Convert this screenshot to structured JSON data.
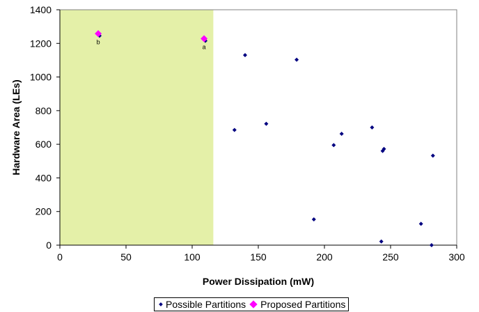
{
  "chart_data": {
    "type": "scatter",
    "xlabel": "Power Dissipation (mW)",
    "ylabel": "Hardware Area (LEs)",
    "xlim": [
      0,
      300
    ],
    "ylim": [
      0,
      1400
    ],
    "xticks": [
      0,
      50,
      100,
      150,
      200,
      250,
      300
    ],
    "yticks": [
      0,
      200,
      400,
      600,
      800,
      1000,
      1200,
      1400
    ],
    "grid": false,
    "legend_position": "bottom",
    "shaded_region": {
      "x": [
        0,
        116
      ],
      "color": "#e4f0a8"
    },
    "series": [
      {
        "name": "Possible Partitions",
        "color": "#000080",
        "marker": "diamond",
        "points": [
          {
            "x": 30,
            "y": 1245
          },
          {
            "x": 110,
            "y": 1215
          },
          {
            "x": 140,
            "y": 1130
          },
          {
            "x": 179,
            "y": 1103
          },
          {
            "x": 132,
            "y": 685
          },
          {
            "x": 156,
            "y": 722
          },
          {
            "x": 236,
            "y": 700
          },
          {
            "x": 213,
            "y": 662
          },
          {
            "x": 207,
            "y": 595
          },
          {
            "x": 245,
            "y": 572
          },
          {
            "x": 244,
            "y": 560
          },
          {
            "x": 282,
            "y": 532
          },
          {
            "x": 192,
            "y": 153
          },
          {
            "x": 273,
            "y": 127
          },
          {
            "x": 243,
            "y": 22
          },
          {
            "x": 281,
            "y": 0
          }
        ]
      },
      {
        "name": "Proposed Partitions",
        "color": "#ff00ff",
        "marker": "diamond",
        "points": [
          {
            "x": 29,
            "y": 1258,
            "label": "b"
          },
          {
            "x": 109,
            "y": 1228,
            "label": "a"
          }
        ]
      }
    ]
  }
}
